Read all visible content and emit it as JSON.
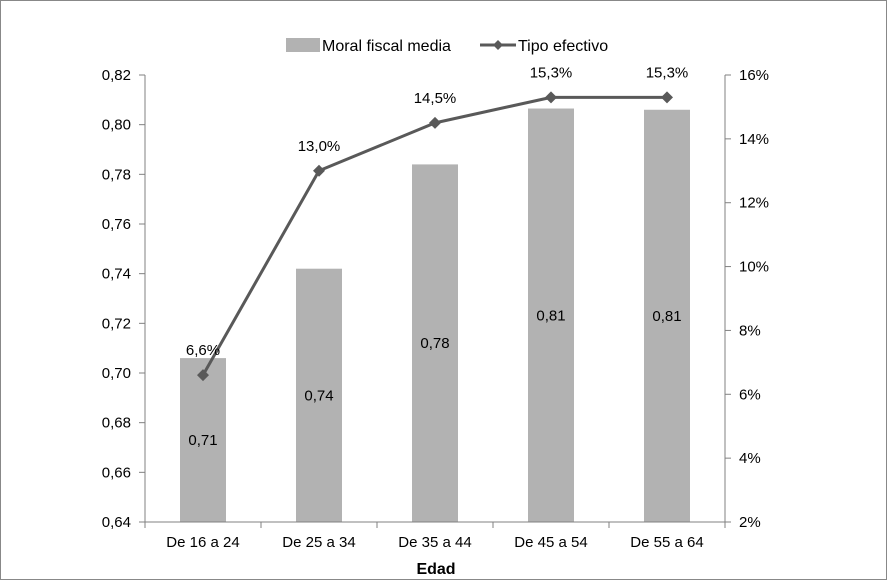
{
  "chart_data": {
    "type": "bar",
    "categories": [
      "De 16 a 24",
      "De 25 a 34",
      "De 35 a 44",
      "De 45 a 54",
      "De 55 a 64"
    ],
    "xlabel": "Edad",
    "series": [
      {
        "name": "Moral fiscal media",
        "type": "bar",
        "axis": "left",
        "values": [
          0.706,
          0.742,
          0.784,
          0.8065,
          0.806
        ],
        "labels": [
          "0,71",
          "0,74",
          "0,78",
          "0,81",
          "0,81"
        ],
        "color": "#b2b2b2"
      },
      {
        "name": "Tipo efectivo",
        "type": "line",
        "axis": "right",
        "values": [
          6.6,
          13.0,
          14.5,
          15.3,
          15.3
        ],
        "labels": [
          "6,6%",
          "13,0%",
          "14,5%",
          "15,3%",
          "15,3%"
        ],
        "color": "#595959"
      }
    ],
    "y_left": {
      "min": 0.64,
      "max": 0.82,
      "step": 0.02,
      "ticks": [
        "0,64",
        "0,66",
        "0,68",
        "0,70",
        "0,72",
        "0,74",
        "0,76",
        "0,78",
        "0,80",
        "0,82"
      ]
    },
    "y_right": {
      "min": 2,
      "max": 16,
      "step": 2,
      "ticks": [
        "2%",
        "4%",
        "6%",
        "8%",
        "10%",
        "12%",
        "14%",
        "16%"
      ]
    },
    "grid": false,
    "legend": "top-center"
  }
}
